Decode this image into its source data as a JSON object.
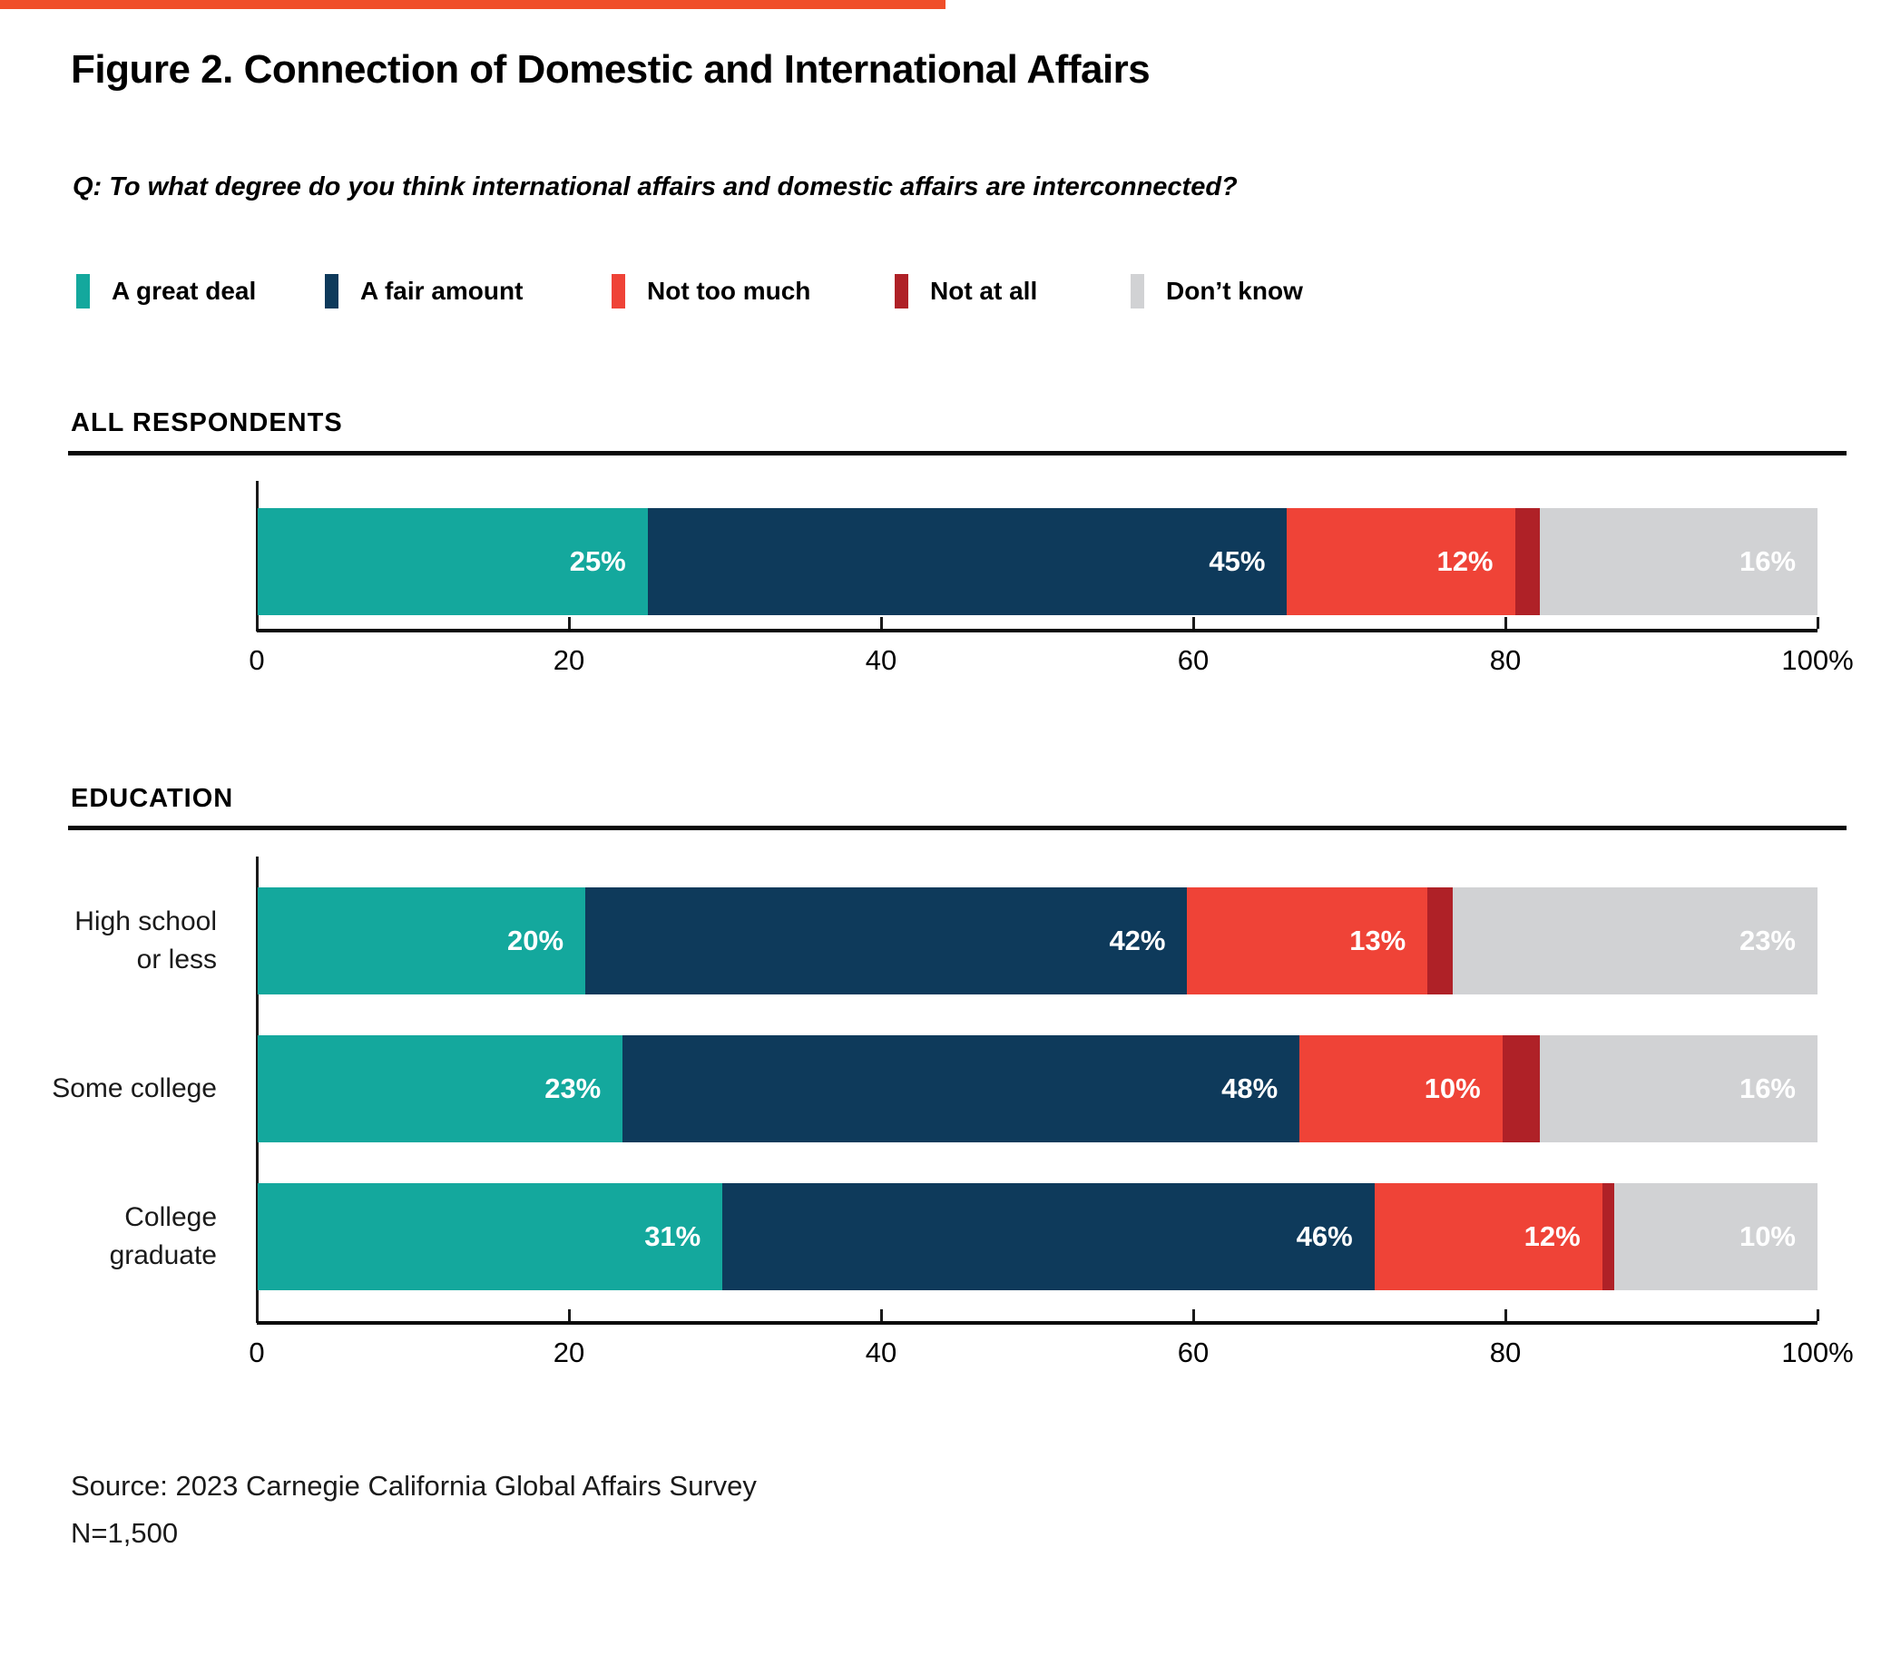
{
  "page": {
    "accent_color": "#F04E29",
    "title": "Figure 2. Connection of Domestic and International Affairs",
    "question": "Q: To what degree do you think international affairs and domestic affairs are interconnected?",
    "source_line1": "Source: 2023 Carnegie California Global Affairs Survey",
    "source_line2": "N=1,500"
  },
  "chart_data": {
    "type": "bar",
    "stacked": true,
    "orientation": "horizontal",
    "title": "Figure 2. Connection of Domestic and International Affairs",
    "question": "Q: To what degree do you think international affairs and domestic affairs are interconnected?",
    "legend": [
      "A great deal",
      "A fair amount",
      "Not too much",
      "Not at all",
      "Don’t know"
    ],
    "legend_position": "top",
    "legend_left_offsets": [
      84,
      358,
      674,
      986,
      1246
    ],
    "colors": [
      "#14A89D",
      "#0E3A5B",
      "#EF4337",
      "#AF2127",
      "#D1D2D4"
    ],
    "xlim": [
      0,
      100
    ],
    "x_ticks": [
      20,
      40,
      60,
      80,
      100
    ],
    "x_tick_labels": [
      {
        "value": 0,
        "label": "0"
      },
      {
        "value": 20,
        "label": "20"
      },
      {
        "value": 40,
        "label": "40"
      },
      {
        "value": 60,
        "label": "60"
      },
      {
        "value": 80,
        "label": "80"
      },
      {
        "value": 100,
        "label": "100%"
      }
    ],
    "sections": [
      {
        "header": "ALL RESPONDENTS",
        "rows": [
          {
            "label": "",
            "label_lines": [],
            "values": [
              25,
              45,
              12,
              2,
              16
            ],
            "value_labels": [
              "25%",
              "45%",
              "12%",
              "",
              "16%"
            ]
          }
        ]
      },
      {
        "header": "EDUCATION",
        "rows": [
          {
            "label": "High school or less",
            "label_lines": [
              "High school",
              "or less"
            ],
            "values": [
              20,
              42,
              13,
              2,
              23
            ],
            "value_labels": [
              "20%",
              "42%",
              "13%",
              "",
              "23%"
            ]
          },
          {
            "label": "Some college",
            "label_lines": [
              "Some college"
            ],
            "values": [
              23,
              48,
              10,
              3,
              16
            ],
            "value_labels": [
              "23%",
              "48%",
              "10%",
              "",
              "16%"
            ]
          },
          {
            "label": "College graduate",
            "label_lines": [
              "College",
              "graduate"
            ],
            "values": [
              31,
              46,
              12,
              1,
              10
            ],
            "value_labels": [
              "31%",
              "46%",
              "12%",
              "",
              "10%"
            ]
          }
        ]
      }
    ]
  }
}
